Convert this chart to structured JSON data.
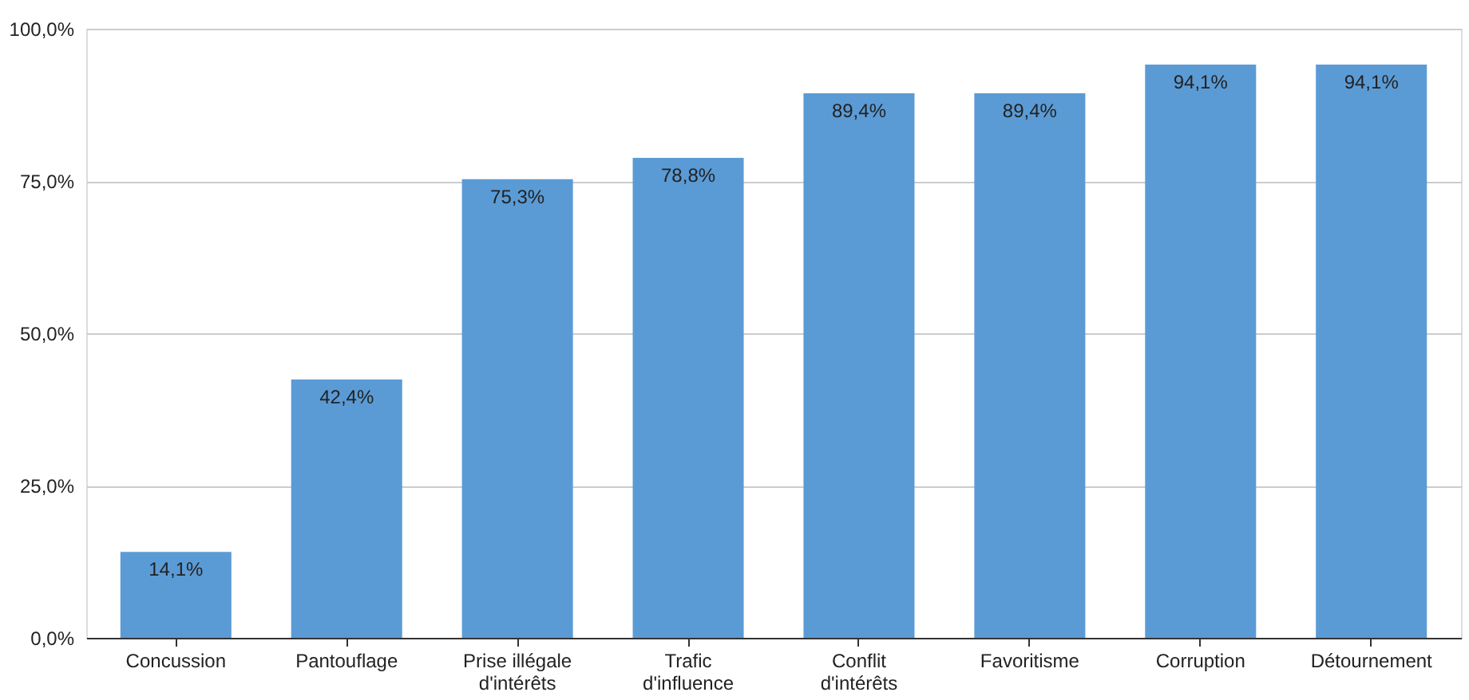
{
  "chart_data": {
    "type": "bar",
    "categories": [
      "Concussion",
      "Pantouflage",
      "Prise illégale d'intérêts",
      "Trafic d'influence",
      "Conflit d'intérêts",
      "Favoritisme",
      "Corruption",
      "Détournement"
    ],
    "values": [
      14.1,
      42.4,
      75.3,
      78.8,
      89.4,
      89.4,
      94.1,
      94.1
    ],
    "value_labels": [
      "14,1%",
      "42,4%",
      "75,3%",
      "78,8%",
      "89,4%",
      "89,4%",
      "94,1%",
      "94,1%"
    ],
    "color": "#5b9bd5",
    "ylim": [
      0,
      100
    ],
    "yticks": [
      {
        "value": 0,
        "label": "0,0%"
      },
      {
        "value": 25,
        "label": "25,0%"
      },
      {
        "value": 50,
        "label": "50,0%"
      },
      {
        "value": 75,
        "label": "75,0%"
      },
      {
        "value": 100,
        "label": "100,0%"
      }
    ],
    "grid": "y"
  }
}
